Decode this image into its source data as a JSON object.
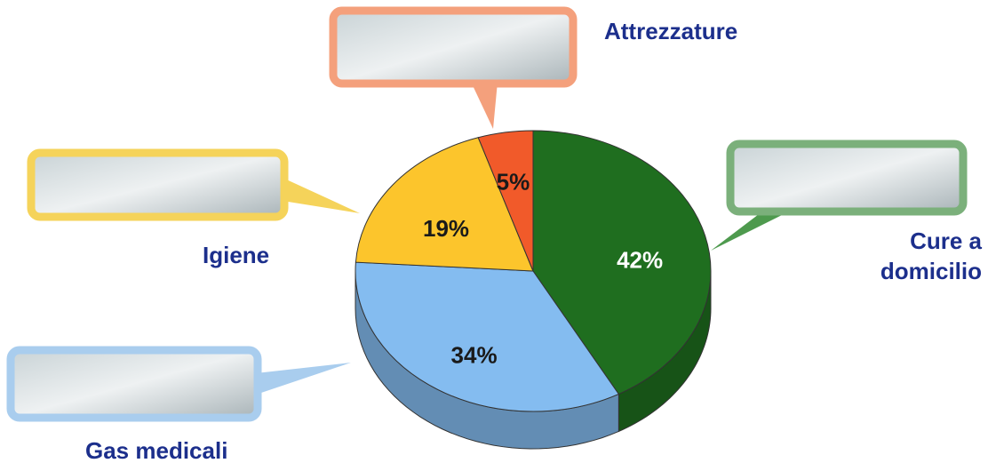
{
  "chart_data": {
    "type": "pie",
    "categories": [
      "Cure a domicilio",
      "Gas medicali",
      "Igiene",
      "Attrezzature"
    ],
    "values": [
      42,
      34,
      19,
      5
    ],
    "value_labels": [
      "42%",
      "34%",
      "19%",
      "5%"
    ],
    "colors": [
      "#1f6e1f",
      "#84bcf0",
      "#fcc52c",
      "#f15a2a"
    ]
  }
}
